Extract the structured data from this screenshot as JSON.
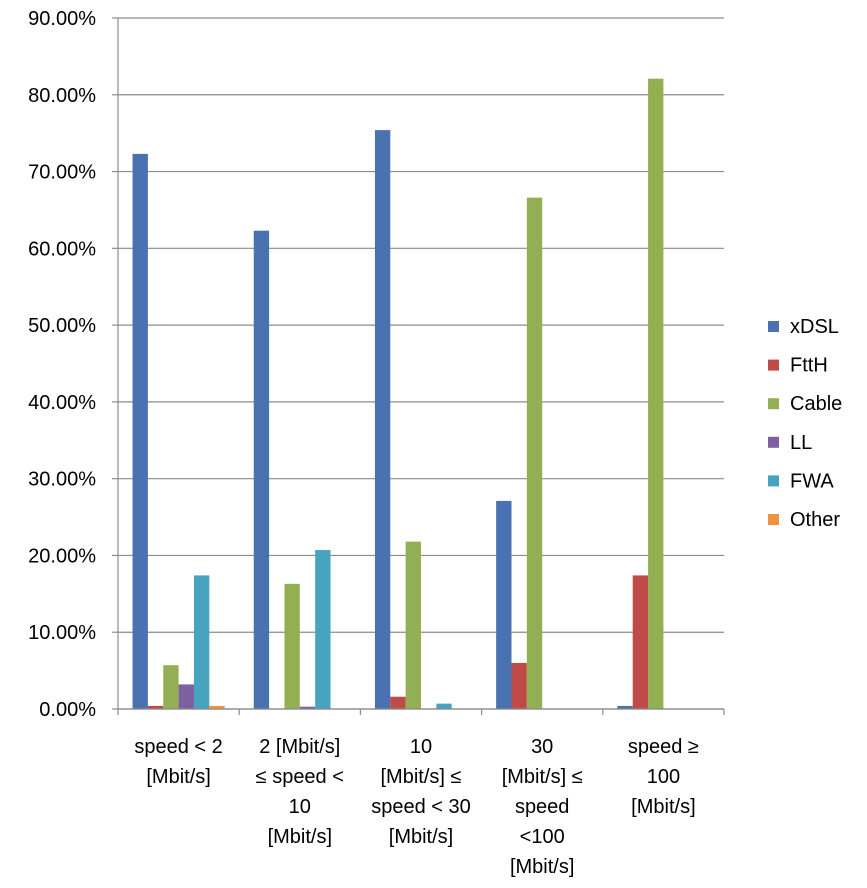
{
  "chart_data": {
    "type": "bar",
    "categories": [
      [
        "speed <  2",
        "[Mbit/s]"
      ],
      [
        "2 [Mbit/s]",
        "≤ speed <",
        "10",
        "[Mbit/s]"
      ],
      [
        "10",
        "[Mbit/s] ≤",
        "speed < 30",
        "[Mbit/s]"
      ],
      [
        "30",
        "[Mbit/s] ≤",
        "speed",
        "<100",
        "[Mbit/s]"
      ],
      [
        "speed ≥",
        "100",
        "[Mbit/s]"
      ]
    ],
    "series": [
      {
        "name": "xDSL",
        "color": "#4a72b0",
        "values": [
          72.3,
          62.3,
          75.4,
          27.1,
          0.4
        ]
      },
      {
        "name": "FttH",
        "color": "#bf4b48",
        "values": [
          0.4,
          0.0,
          1.6,
          6.0,
          17.4
        ]
      },
      {
        "name": "Cable",
        "color": "#92b053",
        "values": [
          5.7,
          16.3,
          21.8,
          66.6,
          82.1
        ]
      },
      {
        "name": "LL",
        "color": "#7d60a0",
        "values": [
          3.2,
          0.3,
          0.0,
          0.0,
          0.0
        ]
      },
      {
        "name": "FWA",
        "color": "#46a4be",
        "values": [
          17.4,
          20.7,
          0.7,
          0.0,
          0.0
        ]
      },
      {
        "name": "Other",
        "color": "#f0923f",
        "values": [
          0.4,
          0.0,
          0.0,
          0.0,
          0.0
        ]
      }
    ],
    "yticks": [
      "0.00%",
      "10.00%",
      "20.00%",
      "30.00%",
      "40.00%",
      "50.00%",
      "60.00%",
      "70.00%",
      "80.00%",
      "90.00%"
    ],
    "ylim": [
      0,
      90
    ],
    "grid": true,
    "legend_position": "right"
  }
}
